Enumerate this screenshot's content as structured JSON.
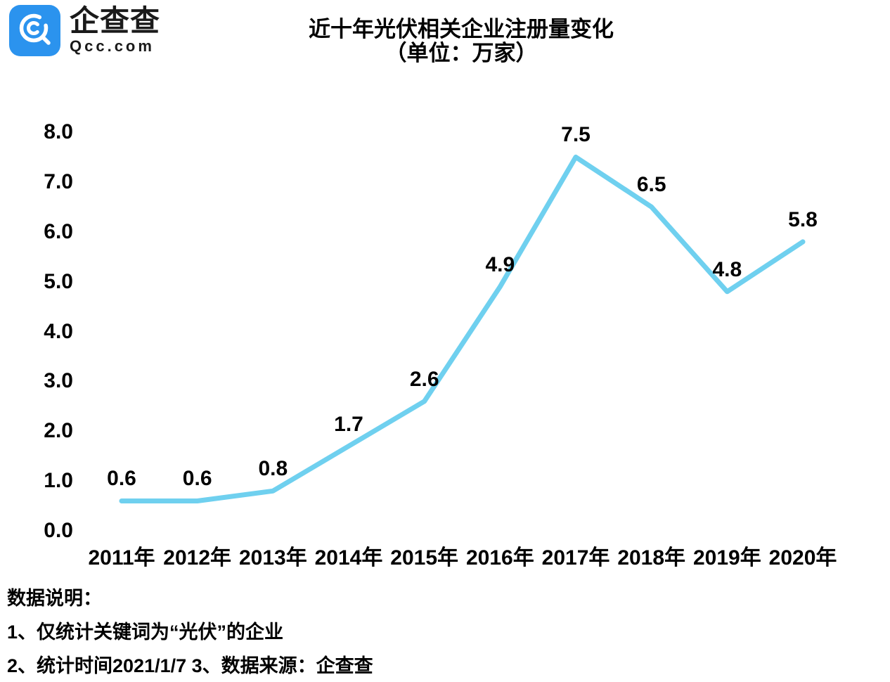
{
  "logo": {
    "name": "企查查",
    "domain": "Qcc.com",
    "brand_color": "#2B93EE"
  },
  "title": {
    "line1": "近十年光伏相关企业注册量变化",
    "line2": "（单位：万家）"
  },
  "chart_data": {
    "type": "line",
    "title": "近十年光伏相关企业注册量变化（单位：万家）",
    "categories": [
      "2011年",
      "2012年",
      "2013年",
      "2014年",
      "2015年",
      "2016年",
      "2017年",
      "2018年",
      "2019年",
      "2020年"
    ],
    "values": [
      0.6,
      0.6,
      0.8,
      1.7,
      2.6,
      4.9,
      7.5,
      6.5,
      4.8,
      5.8
    ],
    "data_labels": [
      "0.6",
      "0.6",
      "0.8",
      "1.7",
      "2.6",
      "4.9",
      "7.5",
      "6.5",
      "4.8",
      "5.8"
    ],
    "xlabel": "",
    "ylabel": "",
    "ylim": [
      0.0,
      8.0
    ],
    "y_ticks": [
      "8.0",
      "7.0",
      "6.0",
      "5.0",
      "4.0",
      "3.0",
      "2.0",
      "1.0",
      "0.0"
    ],
    "grid": false,
    "legend": "none",
    "line_color": "#6FD0EF",
    "label_color": "#000000"
  },
  "notes": {
    "heading": "数据说明：",
    "line1": "1、仅统计关键词为“光伏”的企业",
    "line2": "2、统计时间2021/1/7  3、数据来源：企查查"
  }
}
